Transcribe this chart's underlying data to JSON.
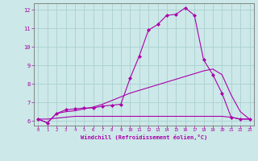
{
  "xlabel": "Windchill (Refroidissement éolien,°C)",
  "background_color": "#cce8e8",
  "grid_color": "#aacfcf",
  "line_color": "#aa00aa",
  "xlim": [
    -0.5,
    23.5
  ],
  "ylim": [
    5.75,
    12.35
  ],
  "xticks": [
    0,
    1,
    2,
    3,
    4,
    5,
    6,
    7,
    8,
    9,
    10,
    11,
    12,
    13,
    14,
    15,
    16,
    17,
    18,
    19,
    20,
    21,
    22,
    23
  ],
  "yticks": [
    6,
    7,
    8,
    9,
    10,
    11,
    12
  ],
  "line1_x": [
    0,
    1,
    2,
    3,
    4,
    5,
    6,
    7,
    8,
    9,
    10,
    11,
    12,
    13,
    14,
    15,
    16,
    17,
    18,
    19,
    20,
    21,
    22,
    23
  ],
  "line1_y": [
    6.1,
    5.9,
    6.4,
    6.6,
    6.65,
    6.7,
    6.7,
    6.8,
    6.85,
    6.9,
    8.3,
    9.5,
    10.9,
    11.2,
    11.7,
    11.75,
    12.1,
    11.7,
    9.3,
    8.5,
    7.5,
    6.2,
    6.1,
    6.1
  ],
  "line2_x": [
    0,
    1,
    2,
    3,
    4,
    5,
    6,
    7,
    8,
    9,
    10,
    11,
    12,
    13,
    14,
    15,
    16,
    17,
    18,
    19,
    20,
    21,
    22,
    23
  ],
  "line2_y": [
    6.1,
    5.9,
    6.4,
    6.5,
    6.55,
    6.65,
    6.75,
    6.9,
    7.1,
    7.3,
    7.5,
    7.65,
    7.8,
    7.95,
    8.1,
    8.25,
    8.4,
    8.55,
    8.7,
    8.8,
    8.5,
    7.4,
    6.5,
    6.1
  ],
  "line3_x": [
    0,
    1,
    2,
    3,
    4,
    5,
    6,
    7,
    8,
    9,
    10,
    11,
    12,
    13,
    14,
    15,
    16,
    17,
    18,
    19,
    20,
    21,
    22,
    23
  ],
  "line3_y": [
    6.1,
    6.1,
    6.15,
    6.2,
    6.25,
    6.25,
    6.25,
    6.25,
    6.25,
    6.25,
    6.25,
    6.25,
    6.25,
    6.25,
    6.25,
    6.25,
    6.25,
    6.25,
    6.25,
    6.25,
    6.25,
    6.2,
    6.1,
    6.1
  ]
}
